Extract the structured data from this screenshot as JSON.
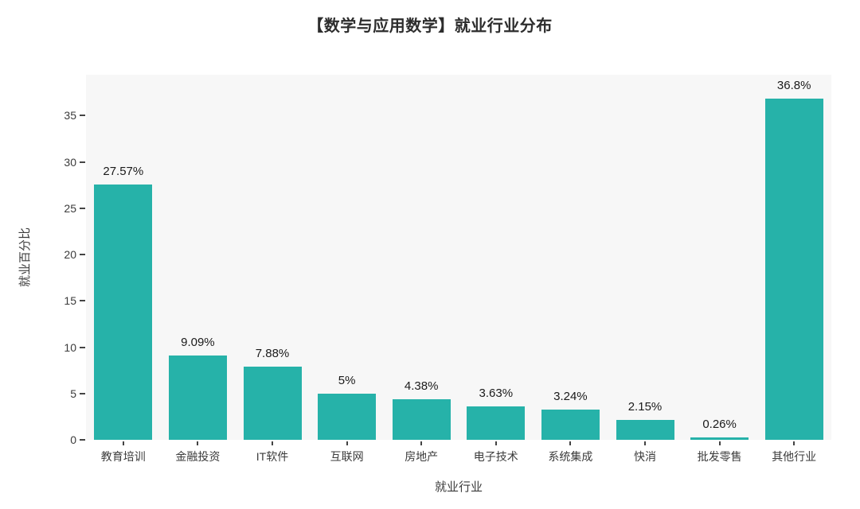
{
  "page": {
    "background": "#ffffff"
  },
  "chart_data": {
    "type": "bar",
    "title": "【数学与应用数学】就业行业分布",
    "xlabel": "就业行业",
    "ylabel": "就业百分比",
    "categories": [
      "教育培训",
      "金融投资",
      "IT软件",
      "互联网",
      "房地产",
      "电子技术",
      "系统集成",
      "快消",
      "批发零售",
      "其他行业"
    ],
    "values": [
      27.57,
      9.09,
      7.88,
      5,
      4.38,
      3.63,
      3.24,
      2.15,
      0.26,
      36.8
    ],
    "value_labels": [
      "27.57%",
      "9.09%",
      "7.88%",
      "5%",
      "4.38%",
      "3.63%",
      "3.24%",
      "2.15%",
      "0.26%",
      "36.8%"
    ],
    "yticks": [
      0,
      5,
      10,
      15,
      20,
      25,
      30,
      35
    ],
    "ylim": [
      0,
      39.4
    ],
    "grid": false,
    "legend": "none",
    "bar_color": "#26b2a9",
    "plot_background": "#f7f7f7",
    "text_color": "#3b3b3b",
    "value_label_color": "#1a1a1a"
  }
}
